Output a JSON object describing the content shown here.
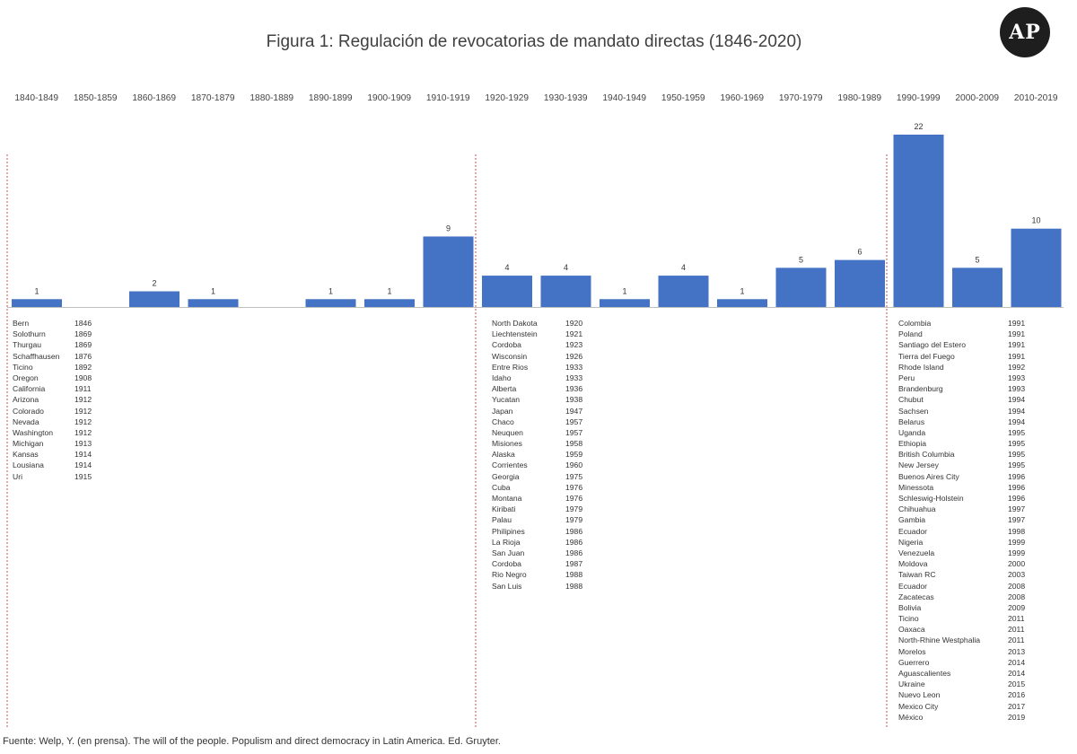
{
  "title": "Figura 1: Regulación de revocatorias de mandato directas (1846-2020)",
  "logo": "AP",
  "source": "Fuente: Welp, Y. (en prensa). The will of the people. Populism and direct democracy in Latin America. Ed. Gruyter.",
  "colors": {
    "bar": "#4472c4",
    "divider": "#c0504d",
    "baseline": "#bfbfbf"
  },
  "chart_data": {
    "type": "bar",
    "title": "Figura 1: Regulación de revocatorias de mandato directas (1846-2020)",
    "xlabel": "",
    "ylabel": "",
    "grid": false,
    "categories": [
      "1840-1849",
      "1850-1859",
      "1860-1869",
      "1870-1879",
      "1880-1889",
      "1890-1899",
      "1900-1909",
      "1910-1919",
      "1920-1929",
      "1930-1939",
      "1940-1949",
      "1950-1959",
      "1960-1969",
      "1970-1979",
      "1980-1989",
      "1990-1999",
      "2000-2009",
      "2010-2019"
    ],
    "values": [
      1,
      0,
      2,
      1,
      0,
      1,
      1,
      9,
      4,
      4,
      1,
      4,
      1,
      5,
      6,
      22,
      5,
      10
    ],
    "value_labels": [
      "1",
      "",
      "2",
      "1",
      "",
      "1",
      "1",
      "9",
      "4",
      "4",
      "1",
      "4",
      "1",
      "5",
      "6",
      "22",
      "5",
      "10"
    ],
    "ylim": [
      0,
      22
    ]
  },
  "lists": [
    {
      "items": [
        [
          "Bern",
          "1846"
        ],
        [
          "Solothurn",
          "1869"
        ],
        [
          "Thurgau",
          "1869"
        ],
        [
          "Schaffhausen",
          "1876"
        ],
        [
          "Ticino",
          "1892"
        ],
        [
          "Oregon",
          "1908"
        ],
        [
          "California",
          "1911"
        ],
        [
          "Arizona",
          "1912"
        ],
        [
          "Colorado",
          "1912"
        ],
        [
          "Nevada",
          "1912"
        ],
        [
          "Washington",
          "1912"
        ],
        [
          "Michigan",
          "1913"
        ],
        [
          "Kansas",
          "1914"
        ],
        [
          "Lousiana",
          "1914"
        ],
        [
          "Uri",
          "1915"
        ]
      ]
    },
    {
      "items": [
        [
          "North Dakota",
          "1920"
        ],
        [
          "Liechtenstein",
          "1921"
        ],
        [
          "Cordoba",
          "1923"
        ],
        [
          "Wisconsin",
          "1926"
        ],
        [
          "Entre Rios",
          "1933"
        ],
        [
          "Idaho",
          "1933"
        ],
        [
          "Alberta",
          "1936"
        ],
        [
          "Yucatan",
          "1938"
        ],
        [
          "Japan",
          "1947"
        ],
        [
          "Chaco",
          "1957"
        ],
        [
          "Neuquen",
          "1957"
        ],
        [
          "Misiones",
          "1958"
        ],
        [
          "Alaska",
          "1959"
        ],
        [
          "Corrientes",
          "1960"
        ],
        [
          "Georgia",
          "1975"
        ],
        [
          "Cuba",
          "1976"
        ],
        [
          "Montana",
          "1976"
        ],
        [
          "Kiribati",
          "1979"
        ],
        [
          "Palau",
          "1979"
        ],
        [
          "Philipines",
          "1986"
        ],
        [
          "La Rioja",
          "1986"
        ],
        [
          "San Juan",
          "1986"
        ],
        [
          "Cordoba",
          "1987"
        ],
        [
          "Rio Negro",
          "1988"
        ],
        [
          "San Luis",
          "1988"
        ]
      ]
    },
    {
      "items": [
        [
          "Colombia",
          "1991"
        ],
        [
          "Poland",
          "1991"
        ],
        [
          "Santiago del Estero",
          "1991"
        ],
        [
          "Tierra del Fuego",
          "1991"
        ],
        [
          "Rhode Island",
          "1992"
        ],
        [
          "Peru",
          "1993"
        ],
        [
          "Brandenburg",
          "1993"
        ],
        [
          "Chubut",
          "1994"
        ],
        [
          "Sachsen",
          "1994"
        ],
        [
          "Belarus",
          "1994"
        ],
        [
          "Uganda",
          "1995"
        ],
        [
          "Ethiopia",
          "1995"
        ],
        [
          "British Columbia",
          "1995"
        ],
        [
          "New Jersey",
          "1995"
        ],
        [
          "Buenos Aires City",
          "1996"
        ],
        [
          "Minessota",
          "1996"
        ],
        [
          "Schleswig-Holstein",
          "1996"
        ],
        [
          "Chihuahua",
          "1997"
        ],
        [
          "Gambia",
          "1997"
        ],
        [
          "Ecuador",
          "1998"
        ],
        [
          "Nigeria",
          "1999"
        ],
        [
          "Venezuela",
          "1999"
        ],
        [
          "Moldova",
          "2000"
        ],
        [
          "Taiwan RC",
          "2003"
        ],
        [
          "Ecuador",
          "2008"
        ],
        [
          "Zacatecas",
          "2008"
        ],
        [
          "Bolivia",
          "2009"
        ],
        [
          "Ticino",
          "2011"
        ],
        [
          "Oaxaca",
          "2011"
        ],
        [
          "North-Rhine Westphalia",
          "2011"
        ],
        [
          "Morelos",
          "2013"
        ],
        [
          "Guerrero",
          "2014"
        ],
        [
          "Aguascalientes",
          "2014"
        ],
        [
          "Ukraine",
          "2015"
        ],
        [
          "Nuevo Leon",
          "2016"
        ],
        [
          "Mexico City",
          "2017"
        ],
        [
          "México",
          "2019"
        ]
      ]
    }
  ]
}
